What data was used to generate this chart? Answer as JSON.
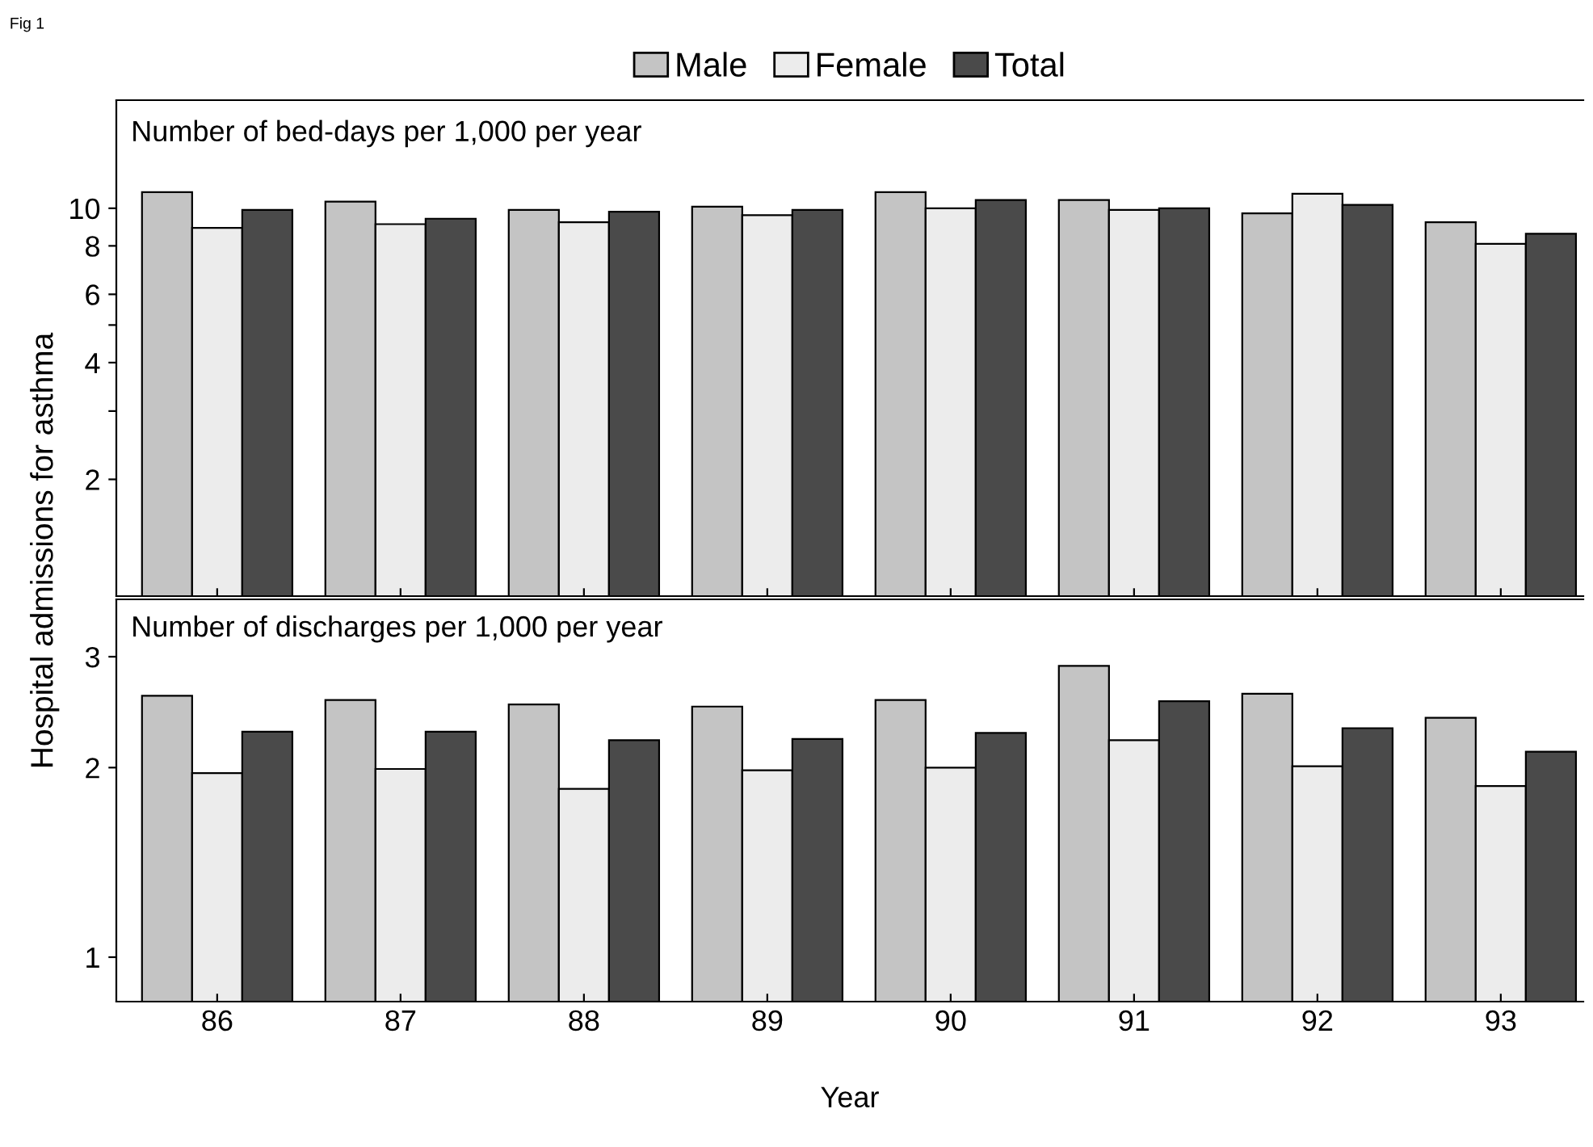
{
  "chart_data": [
    {
      "type": "bar",
      "title": "Number of bed-days per 1,000 per year",
      "ylabel": "Hospital admissions for asthma",
      "annotations": [
        "Fig 1"
      ],
      "categories": [
        "86",
        "87",
        "88",
        "89",
        "90",
        "91",
        "92",
        "93"
      ],
      "series": [
        {
          "name": "Male",
          "color": "#c4c4c4",
          "values": [
            11.0,
            10.4,
            9.9,
            10.1,
            11.0,
            10.5,
            9.7,
            9.2
          ]
        },
        {
          "name": "Female",
          "color": "#ececec",
          "values": [
            8.9,
            9.1,
            9.2,
            9.6,
            10.0,
            9.9,
            10.9,
            8.1
          ]
        },
        {
          "name": "Total",
          "color": "#4a4a4a",
          "values": [
            9.9,
            9.4,
            9.8,
            9.9,
            10.5,
            10.0,
            10.2,
            8.6
          ]
        }
      ],
      "log": "y",
      "ylim": [
        1,
        19
      ],
      "yticks": [
        2,
        {
          "value": 3,
          "label": null
        },
        4,
        {
          "value": 5,
          "label": null
        },
        6,
        8,
        10
      ],
      "legend": "top",
      "grid": false,
      "tick_labels": "y"
    },
    {
      "type": "bar",
      "title": "Number of discharges per 1,000 per year",
      "xlabel": "Year",
      "categories": [
        "86",
        "87",
        "88",
        "89",
        "90",
        "91",
        "92",
        "93"
      ],
      "series": [
        {
          "color": "#c4c4c4",
          "values": [
            2.6,
            2.56,
            2.52,
            2.5,
            2.56,
            2.9,
            2.62,
            2.4
          ]
        },
        {
          "color": "#ececec",
          "values": [
            1.96,
            1.99,
            1.85,
            1.98,
            2.0,
            2.21,
            2.01,
            1.87
          ]
        },
        {
          "color": "#4a4a4a",
          "values": [
            2.28,
            2.28,
            2.21,
            2.22,
            2.27,
            2.55,
            2.31,
            2.12
          ]
        }
      ],
      "log": "y",
      "ylim": [
        0.85,
        3.7
      ],
      "yticks": [
        1,
        2,
        3
      ],
      "grid": false
    }
  ]
}
